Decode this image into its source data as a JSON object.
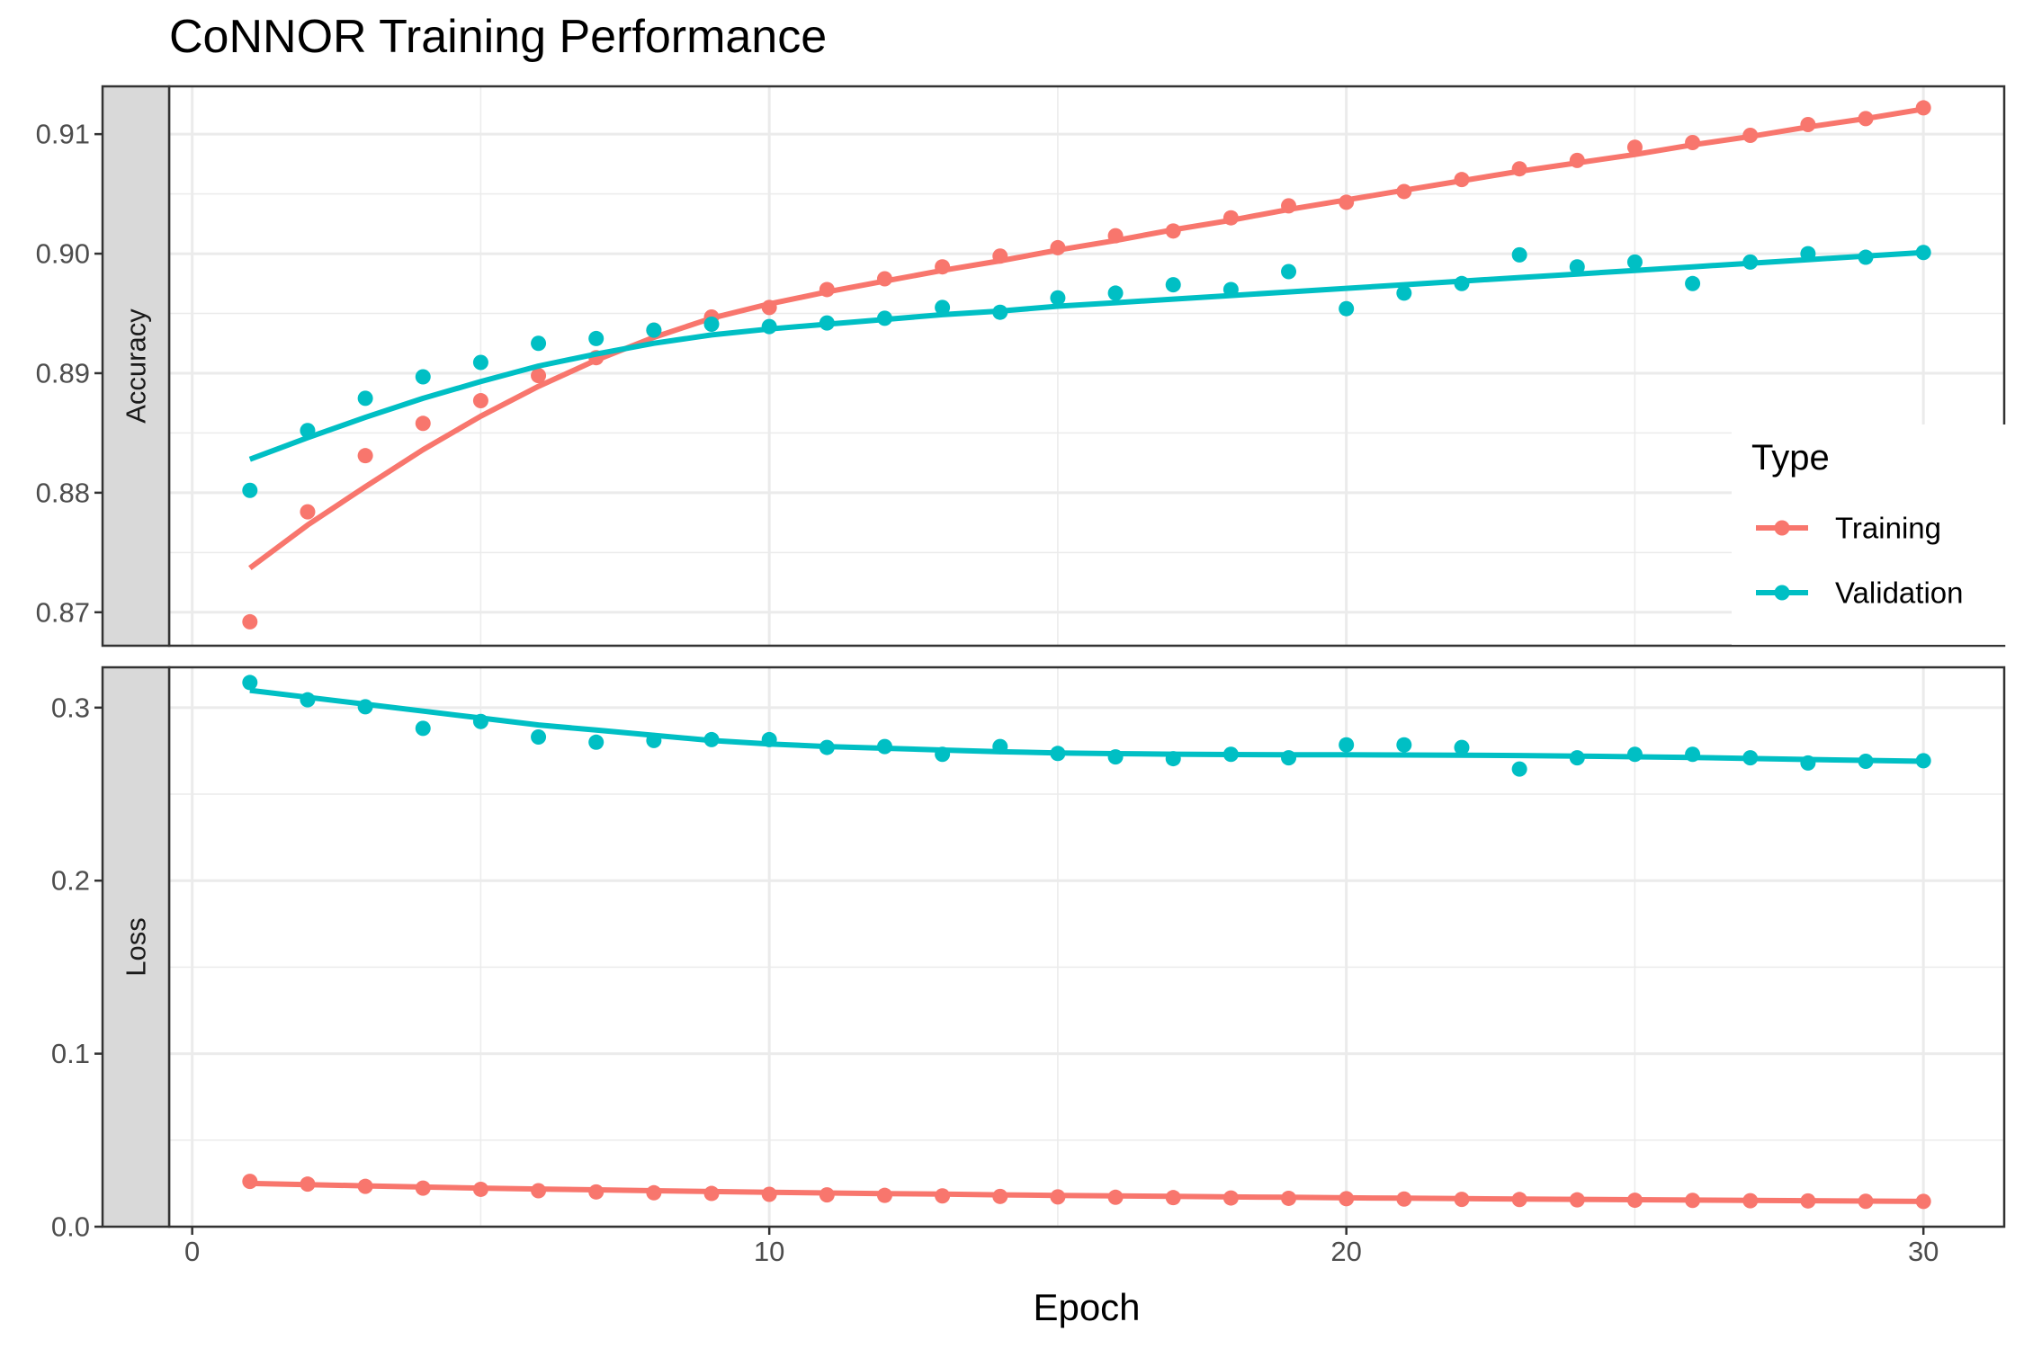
{
  "chart_data": {
    "type": "scatter",
    "title": "CoNNOR Training Performance",
    "xlabel": "Epoch",
    "x_ticks": [
      "0",
      "10",
      "20",
      "30"
    ],
    "xlim": [
      -0.4,
      31.4
    ],
    "legend_title": "Type",
    "legend_placement": "right",
    "grid": true,
    "colors": {
      "Training": "#F8766D",
      "Validation": "#00BFC4"
    },
    "facets": [
      {
        "label": "Accuracy",
        "ylim": [
          0.8672,
          0.914
        ],
        "y_ticks": [
          "0.87",
          "0.88",
          "0.89",
          "0.90",
          "0.91"
        ],
        "series": [
          {
            "name": "Training",
            "x": [
              1,
              2,
              3,
              4,
              5,
              6,
              7,
              8,
              9,
              10,
              11,
              12,
              13,
              14,
              15,
              16,
              17,
              18,
              19,
              20,
              21,
              22,
              23,
              24,
              25,
              26,
              27,
              28,
              29,
              30
            ],
            "values": [
              0.8692,
              0.8784,
              0.8831,
              0.8858,
              0.8877,
              0.8898,
              0.8913,
              0.8936,
              0.8947,
              0.8955,
              0.897,
              0.8979,
              0.8989,
              0.8998,
              0.9005,
              0.9015,
              0.9019,
              0.903,
              0.904,
              0.9043,
              0.9052,
              0.9062,
              0.9071,
              0.9078,
              0.9089,
              0.9093,
              0.9099,
              0.9108,
              0.9113,
              0.9122
            ],
            "fit": [
              0.8737,
              0.8773,
              0.8805,
              0.8836,
              0.8864,
              0.8889,
              0.8911,
              0.893,
              0.8946,
              0.8958,
              0.8968,
              0.8977,
              0.8986,
              0.8994,
              0.9003,
              0.9011,
              0.902,
              0.9028,
              0.9037,
              0.9045,
              0.9053,
              0.9061,
              0.9069,
              0.9076,
              0.9083,
              0.9091,
              0.9098,
              0.9106,
              0.9113,
              0.9121
            ]
          },
          {
            "name": "Validation",
            "x": [
              1,
              2,
              3,
              4,
              5,
              6,
              7,
              8,
              9,
              10,
              11,
              12,
              13,
              14,
              15,
              16,
              17,
              18,
              19,
              20,
              21,
              22,
              23,
              24,
              25,
              26,
              27,
              28,
              29,
              30
            ],
            "values": [
              0.8802,
              0.8852,
              0.8879,
              0.8897,
              0.8909,
              0.8925,
              0.8929,
              0.8936,
              0.8941,
              0.8939,
              0.8942,
              0.8946,
              0.8955,
              0.8951,
              0.8963,
              0.8967,
              0.8974,
              0.897,
              0.8985,
              0.8954,
              0.8967,
              0.8975,
              0.8999,
              0.8989,
              0.8993,
              0.8975,
              0.8993,
              0.9,
              0.8997,
              0.9001
            ],
            "fit": [
              0.8828,
              0.8846,
              0.8863,
              0.8879,
              0.8893,
              0.8906,
              0.8916,
              0.8925,
              0.8932,
              0.8937,
              0.8941,
              0.8945,
              0.8949,
              0.8952,
              0.8956,
              0.8959,
              0.8962,
              0.8965,
              0.8968,
              0.8971,
              0.8974,
              0.8977,
              0.898,
              0.8983,
              0.8986,
              0.8989,
              0.8992,
              0.8995,
              0.8998,
              0.9001
            ]
          }
        ]
      },
      {
        "label": "Loss",
        "ylim": [
          0,
          0.3233
        ],
        "y_ticks": [
          "0.0",
          "0.1",
          "0.2",
          "0.3"
        ],
        "series": [
          {
            "name": "Training",
            "x": [
              1,
              2,
              3,
              4,
              5,
              6,
              7,
              8,
              9,
              10,
              11,
              12,
              13,
              14,
              15,
              16,
              17,
              18,
              19,
              20,
              21,
              22,
              23,
              24,
              25,
              26,
              27,
              28,
              29,
              30
            ],
            "values": [
              0.0262,
              0.0246,
              0.0233,
              0.0223,
              0.0216,
              0.0208,
              0.0201,
              0.0196,
              0.0192,
              0.0187,
              0.0184,
              0.0181,
              0.0178,
              0.0175,
              0.0172,
              0.017,
              0.0168,
              0.0166,
              0.0164,
              0.0162,
              0.016,
              0.0158,
              0.0157,
              0.0155,
              0.0153,
              0.0152,
              0.015,
              0.0149,
              0.0147,
              0.0146
            ],
            "fit": [
              0.025,
              0.0243,
              0.0236,
              0.0229,
              0.0223,
              0.0218,
              0.0213,
              0.0208,
              0.0203,
              0.0199,
              0.0195,
              0.0191,
              0.0188,
              0.0184,
              0.0181,
              0.0178,
              0.0175,
              0.0172,
              0.017,
              0.0167,
              0.0165,
              0.0162,
              0.016,
              0.0158,
              0.0156,
              0.0154,
              0.0152,
              0.015,
              0.0148,
              0.0146
            ]
          },
          {
            "name": "Validation",
            "x": [
              1,
              2,
              3,
              4,
              5,
              6,
              7,
              8,
              9,
              10,
              11,
              12,
              13,
              14,
              15,
              16,
              17,
              18,
              19,
              20,
              21,
              22,
              23,
              24,
              25,
              26,
              27,
              28,
              29,
              30
            ],
            "values": [
              0.3145,
              0.3045,
              0.3005,
              0.288,
              0.292,
              0.283,
              0.28,
              0.281,
              0.2815,
              0.2815,
              0.277,
              0.2775,
              0.273,
              0.2775,
              0.2735,
              0.2715,
              0.2705,
              0.273,
              0.271,
              0.2785,
              0.2785,
              0.277,
              0.2645,
              0.271,
              0.273,
              0.273,
              0.271,
              0.268,
              0.269,
              0.2693
            ],
            "fit": [
              0.31,
              0.306,
              0.302,
              0.298,
              0.294,
              0.29,
              0.287,
              0.284,
              0.281,
              0.279,
              0.2775,
              0.2765,
              0.2755,
              0.2745,
              0.2738,
              0.2734,
              0.2731,
              0.2729,
              0.2728,
              0.2727,
              0.2726,
              0.2725,
              0.2723,
              0.272,
              0.2716,
              0.2712,
              0.2706,
              0.27,
              0.2695,
              0.269
            ]
          }
        ]
      }
    ]
  }
}
